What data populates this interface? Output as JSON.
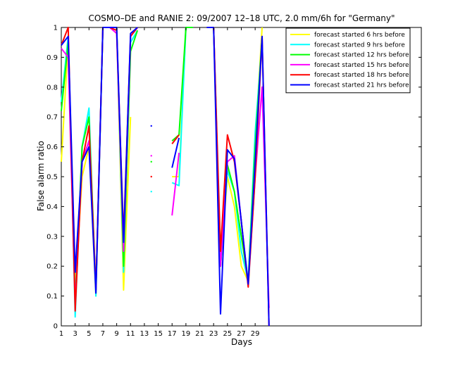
{
  "chart_data": {
    "type": "line",
    "title": "COSMO–DE and RANIE 2: 09/2007 12–18 UTC, 2.0 mm/6h for \"Germany\"",
    "xlabel": "Days",
    "ylabel": "False alarm ratio",
    "xlim": [
      1,
      53
    ],
    "ylim": [
      0,
      1
    ],
    "xticks": [
      1,
      3,
      5,
      7,
      9,
      11,
      13,
      15,
      17,
      19,
      21,
      23,
      25,
      27,
      29
    ],
    "yticks": [
      0,
      0.1,
      0.2,
      0.3,
      0.4,
      0.5,
      0.6,
      0.7,
      0.8,
      0.9,
      1
    ],
    "ytick_labels": [
      "0",
      "0.1",
      "0.2",
      "0.3",
      "0.4",
      "0.5",
      "0.6",
      "0.7",
      "0.8",
      "0.9",
      "1"
    ],
    "grid": false,
    "legend_position": "top-right",
    "x": [
      1,
      2,
      3,
      4,
      5,
      6,
      7,
      8,
      9,
      10,
      11,
      12,
      13,
      14,
      15,
      16,
      17,
      18,
      19,
      20,
      21,
      22,
      23,
      24,
      25,
      26,
      27,
      28,
      29,
      30,
      31
    ],
    "series": [
      {
        "name": "forecast started 6 hrs before",
        "color": "#ffff00",
        "values": [
          0.55,
          0.95,
          0.12,
          0.5,
          0.6,
          0.1,
          1.0,
          1.0,
          1.0,
          0.12,
          0.7,
          null,
          null,
          null,
          null,
          null,
          0.5,
          0.5,
          1.0,
          1.0,
          null,
          1.0,
          1.0,
          0.2,
          0.5,
          0.4,
          0.2,
          0.15,
          0.6,
          1.0,
          null
        ]
      },
      {
        "name": "forecast started 9 hrs before",
        "color": "#00ffff",
        "values": [
          0.75,
          0.97,
          0.03,
          0.6,
          0.73,
          0.1,
          1.0,
          1.0,
          1.0,
          0.18,
          0.95,
          0.99,
          null,
          0.45,
          null,
          null,
          0.48,
          0.47,
          1.0,
          1.0,
          null,
          1.0,
          1.0,
          0.2,
          0.52,
          0.45,
          0.25,
          0.15,
          0.65,
          0.95,
          null
        ]
      },
      {
        "name": "forecast started 12 hrs before",
        "color": "#00ff00",
        "values": [
          0.72,
          0.95,
          0.08,
          0.6,
          0.7,
          0.12,
          1.0,
          1.0,
          1.0,
          0.2,
          0.92,
          0.99,
          null,
          0.55,
          null,
          null,
          0.62,
          0.64,
          1.0,
          1.0,
          null,
          1.0,
          1.0,
          0.2,
          0.54,
          0.45,
          0.3,
          0.15,
          0.6,
          0.97,
          null
        ]
      },
      {
        "name": "forecast started 15 hrs before",
        "color": "#ff00ff",
        "values": [
          0.93,
          0.9,
          0.07,
          0.55,
          0.62,
          0.12,
          1.0,
          1.0,
          0.98,
          0.25,
          0.97,
          1.0,
          null,
          0.57,
          null,
          null,
          0.37,
          0.58,
          null,
          null,
          null,
          1.0,
          1.0,
          0.2,
          0.55,
          0.57,
          0.35,
          0.14,
          0.5,
          0.8,
          0.06
        ]
      },
      {
        "name": "forecast started 18 hrs before",
        "color": "#ff0000",
        "values": [
          0.94,
          1.0,
          0.05,
          0.55,
          0.67,
          0.12,
          1.0,
          1.0,
          0.99,
          0.3,
          0.97,
          1.0,
          null,
          0.5,
          null,
          null,
          0.61,
          0.64,
          null,
          null,
          null,
          1.0,
          1.0,
          0.25,
          0.64,
          0.55,
          0.35,
          0.13,
          0.5,
          0.97,
          0.0
        ]
      },
      {
        "name": "forecast started 21 hrs before",
        "color": "#0000ff",
        "values": [
          0.94,
          0.97,
          0.18,
          0.55,
          0.6,
          0.11,
          1.0,
          1.0,
          1.0,
          0.28,
          0.98,
          1.0,
          null,
          0.67,
          null,
          null,
          0.53,
          0.63,
          null,
          null,
          null,
          1.0,
          1.0,
          0.04,
          0.59,
          0.56,
          0.35,
          0.14,
          0.55,
          0.97,
          0.0
        ]
      }
    ]
  }
}
